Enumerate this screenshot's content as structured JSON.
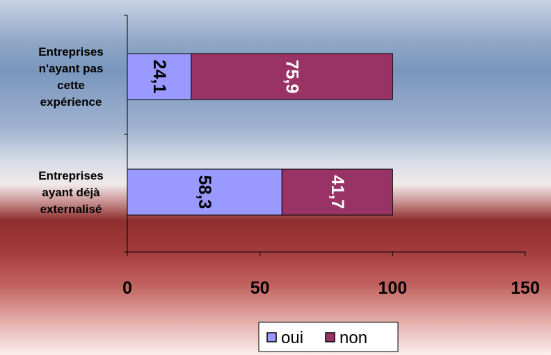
{
  "chart_data": {
    "type": "bar",
    "orientation": "horizontal",
    "stacked": true,
    "categories": [
      "Entreprises n'ayant pas cette expérience",
      "Entreprises ayant déjà externalisé"
    ],
    "category_label_lines": [
      [
        "Entreprises",
        "n'ayant pas",
        "cette",
        "expérience"
      ],
      [
        "Entreprises",
        "ayant déjà",
        "externalisé"
      ]
    ],
    "series": [
      {
        "name": "oui",
        "values": [
          24.1,
          58.3
        ],
        "labels": [
          "24,1",
          "58,3"
        ],
        "color": "#9999ff",
        "label_color": "#000000"
      },
      {
        "name": "non",
        "values": [
          75.9,
          41.7
        ],
        "labels": [
          "75,9",
          "41,7"
        ],
        "color": "#993366",
        "label_color": "#ffffff"
      }
    ],
    "xlim": [
      0,
      150
    ],
    "xticks": [
      0,
      50,
      100,
      150
    ],
    "xtick_labels": [
      "0",
      "50",
      "100",
      "150"
    ],
    "title": "",
    "xlabel": "",
    "ylabel": "",
    "grid": false,
    "legend_position": "bottom",
    "data_label_orientation": "rotated-90",
    "background": "gradient blue-grey top to dark red bottom"
  }
}
